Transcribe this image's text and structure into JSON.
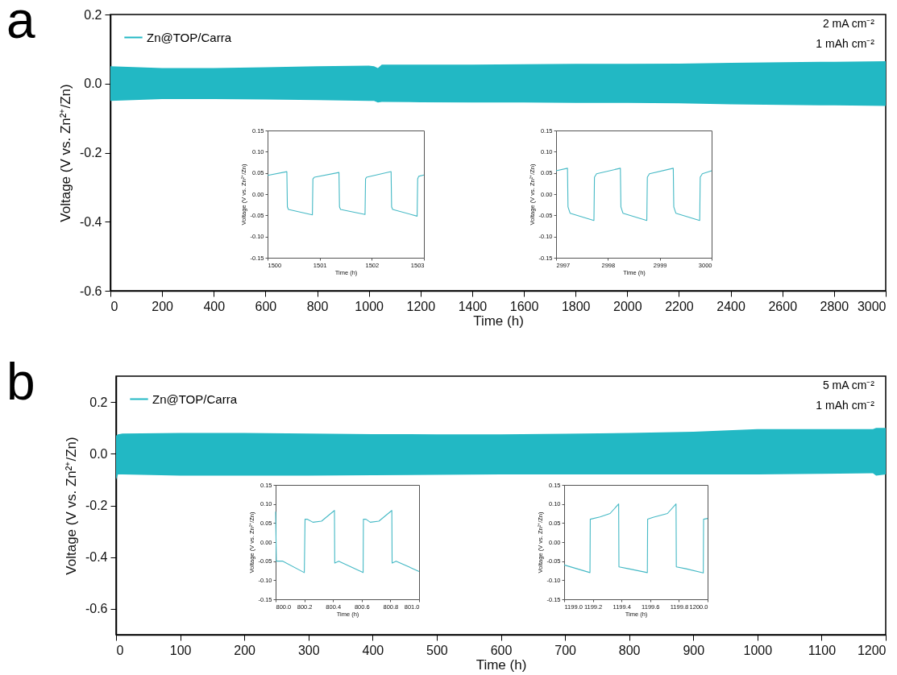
{
  "chart_data": [
    {
      "type": "line",
      "xlabel": "Time (h)",
      "ylabel": "Voltage (V vs. Zn²⁺/Zn)",
      "xlim": [
        0,
        3000
      ],
      "ylim": [
        -0.6,
        0.2
      ],
      "xticks": [
        0,
        200,
        400,
        600,
        800,
        1000,
        1200,
        1400,
        1600,
        1800,
        2000,
        2200,
        2400,
        2600,
        2800,
        3000
      ],
      "yticks": [
        {
          "value": -0.6,
          "label": "-0.6"
        },
        {
          "value": -0.4,
          "label": "-0.4"
        },
        {
          "value": -0.2,
          "label": "-0.2"
        },
        {
          "value": 0,
          "label": "0.0"
        },
        {
          "value": 0.2,
          "label": "0.2"
        }
      ],
      "grid": false,
      "legend": "top left",
      "annotations": [
        "a",
        "2 mA cm⁻²",
        "1 mAh cm⁻²"
      ],
      "series": [
        {
          "name": "Zn@TOP/Carra",
          "color": "#22b8c4",
          "x": [
            0,
            200,
            400,
            600,
            800,
            1000,
            1020,
            1035,
            1050,
            1200,
            1400,
            1600,
            1800,
            2000,
            2200,
            2400,
            2600,
            2800,
            3000
          ],
          "values": [
            null,
            null,
            null,
            null,
            null,
            null,
            null,
            null,
            null,
            null,
            null,
            null,
            null,
            null,
            null,
            null,
            null,
            null,
            null
          ],
          "upper": [
            0.05,
            0.045,
            0.045,
            0.047,
            0.05,
            0.052,
            0.05,
            0.045,
            0.055,
            0.055,
            0.055,
            0.056,
            0.057,
            0.057,
            0.058,
            0.06,
            0.062,
            0.063,
            0.065
          ],
          "lower": [
            -0.05,
            -0.045,
            -0.045,
            -0.046,
            -0.048,
            -0.05,
            -0.05,
            -0.055,
            -0.053,
            -0.054,
            -0.055,
            -0.055,
            -0.056,
            -0.056,
            -0.057,
            -0.06,
            -0.062,
            -0.063,
            -0.065
          ]
        }
      ]
    },
    {
      "type": "line",
      "xlabel": "Time (h)",
      "ylabel": "Voltage (V vs. Zn²⁺/Zn)",
      "xlim": [
        1500,
        1503
      ],
      "ylim": [
        -0.15,
        0.15
      ],
      "xticks": [
        1500,
        1501,
        1502,
        1503
      ],
      "yticks": [
        {
          "value": -0.15,
          "label": "-0.15"
        },
        {
          "value": -0.1,
          "label": "-0.10"
        },
        {
          "value": -0.05,
          "label": "-0.05"
        },
        {
          "value": 0,
          "label": "0.00"
        },
        {
          "value": 0.05,
          "label": "0.05"
        },
        {
          "value": 0.1,
          "label": "0.10"
        },
        {
          "value": 0.15,
          "label": "0.15"
        }
      ],
      "grid": false,
      "line_style": "solid",
      "series": [
        {
          "color": "#45b9c5",
          "x": [
            1500,
            1500.37,
            1500.38,
            1500.4,
            1500.86,
            1500.87,
            1500.9,
            1501.37,
            1501.38,
            1501.4,
            1501.87,
            1501.88,
            1501.9,
            1502.37,
            1502.38,
            1502.4,
            1502.87,
            1502.88,
            1502.9,
            1503
          ],
          "values": [
            0.044,
            0.053,
            -0.03,
            -0.036,
            -0.049,
            0.036,
            0.04,
            0.051,
            -0.03,
            -0.036,
            -0.048,
            0.036,
            0.04,
            0.053,
            -0.03,
            -0.036,
            -0.052,
            0.036,
            0.042,
            0.045
          ]
        }
      ]
    },
    {
      "type": "line",
      "xlabel": "Time (h)",
      "ylabel": "Voltage (V vs. Zn²⁺/Zn)",
      "xlim": [
        2997,
        3000
      ],
      "ylim": [
        -0.15,
        0.15
      ],
      "xticks": [
        2997,
        2998,
        2999,
        3000
      ],
      "yticks": [
        {
          "value": -0.15,
          "label": "-0.15"
        },
        {
          "value": -0.1,
          "label": "-0.10"
        },
        {
          "value": -0.05,
          "label": "-0.05"
        },
        {
          "value": 0,
          "label": "0.00"
        },
        {
          "value": 0.05,
          "label": "0.05"
        },
        {
          "value": 0.1,
          "label": "0.10"
        },
        {
          "value": 0.15,
          "label": "0.15"
        }
      ],
      "grid": false,
      "line_style": "solid",
      "series": [
        {
          "color": "#45b9c5",
          "x": [
            2997,
            2997.22,
            2997.23,
            2997.27,
            2997.73,
            2997.74,
            2997.78,
            2998.24,
            2998.25,
            2998.29,
            2998.75,
            2998.76,
            2998.8,
            2999.26,
            2999.27,
            2999.31,
            2999.77,
            2999.78,
            2999.82,
            3000
          ],
          "values": [
            0.055,
            0.061,
            -0.03,
            -0.045,
            -0.062,
            0.04,
            0.048,
            0.061,
            -0.03,
            -0.045,
            -0.062,
            0.04,
            0.048,
            0.061,
            -0.03,
            -0.045,
            -0.062,
            0.04,
            0.048,
            0.055
          ]
        }
      ]
    },
    {
      "type": "line",
      "xlabel": "Time (h)",
      "ylabel": "Voltage (V vs. Zn²⁺/Zn)",
      "xlim": [
        0,
        1200
      ],
      "ylim": [
        -0.7,
        0.3
      ],
      "xticks": [
        0,
        100,
        200,
        300,
        400,
        500,
        600,
        700,
        800,
        900,
        1000,
        1100,
        1200
      ],
      "yticks": [
        {
          "value": -0.6,
          "label": "-0.6"
        },
        {
          "value": -0.4,
          "label": "-0.4"
        },
        {
          "value": -0.2,
          "label": "-0.2"
        },
        {
          "value": 0,
          "label": "0.0"
        },
        {
          "value": 0.2,
          "label": "0.2"
        }
      ],
      "grid": false,
      "legend": "top left",
      "annotations": [
        "b",
        "5 mA cm⁻²",
        "1 mAh cm⁻²"
      ],
      "series": [
        {
          "name": "Zn@TOP/Carra",
          "color": "#22b8c4",
          "x": [
            0,
            3,
            10,
            100,
            200,
            300,
            400,
            500,
            600,
            700,
            800,
            900,
            1000,
            1100,
            1180,
            1185,
            1200
          ],
          "values": [
            null,
            null,
            null,
            null,
            null,
            null,
            null,
            null,
            null,
            null,
            null,
            null,
            null,
            null,
            null,
            null,
            null
          ],
          "upper": [
            0.07,
            0.075,
            0.078,
            0.08,
            0.08,
            0.078,
            0.076,
            0.075,
            0.075,
            0.077,
            0.08,
            0.085,
            0.095,
            0.095,
            0.095,
            0.1,
            0.1
          ],
          "lower": [
            -0.1,
            -0.08,
            -0.08,
            -0.085,
            -0.085,
            -0.085,
            -0.083,
            -0.082,
            -0.08,
            -0.08,
            -0.08,
            -0.08,
            -0.08,
            -0.078,
            -0.075,
            -0.085,
            -0.08
          ]
        }
      ]
    },
    {
      "type": "line",
      "xlabel": "Time (h)",
      "ylabel": "Voltage (V vs. Zn²⁺/Zn)",
      "xlim": [
        800,
        801
      ],
      "ylim": [
        -0.15,
        0.15
      ],
      "xticks": [
        {
          "value": 800,
          "label": "800.0"
        },
        800.2,
        800.4,
        800.6,
        800.8,
        {
          "value": 801,
          "label": "801.0"
        }
      ],
      "yticks": [
        {
          "value": -0.15,
          "label": "-0.15"
        },
        {
          "value": -0.1,
          "label": "-0.10"
        },
        {
          "value": -0.05,
          "label": "-0.05"
        },
        {
          "value": 0,
          "label": "0.00"
        },
        {
          "value": 0.05,
          "label": "0.05"
        },
        {
          "value": 0.1,
          "label": "0.10"
        },
        {
          "value": 0.15,
          "label": "0.15"
        }
      ],
      "grid": false,
      "line_style": "solid",
      "series": [
        {
          "color": "#45b9c5",
          "x": [
            800,
            800.005,
            800.05,
            800.2,
            800.205,
            800.22,
            800.26,
            800.32,
            800.41,
            800.412,
            800.44,
            800.61,
            800.612,
            800.63,
            800.66,
            800.72,
            800.81,
            800.812,
            800.84,
            801
          ],
          "values": [
            0.08,
            -0.05,
            -0.05,
            -0.08,
            0.06,
            0.06,
            0.052,
            0.055,
            0.083,
            -0.055,
            -0.05,
            -0.08,
            0.06,
            0.06,
            0.052,
            0.055,
            0.083,
            -0.055,
            -0.05,
            -0.077
          ]
        }
      ]
    },
    {
      "type": "line",
      "xlabel": "Time (h)",
      "ylabel": "Voltage (V vs. Zn²⁺/Zn)",
      "xlim": [
        1199,
        1200
      ],
      "ylim": [
        -0.15,
        0.15
      ],
      "xticks": [
        {
          "value": 1199,
          "label": "1199.0"
        },
        1199.2,
        1199.4,
        1199.6,
        1199.8,
        {
          "value": 1200,
          "label": "1200.0"
        }
      ],
      "yticks": [
        {
          "value": -0.15,
          "label": "-0.15"
        },
        {
          "value": -0.1,
          "label": "-0.10"
        },
        {
          "value": -0.05,
          "label": "-0.05"
        },
        {
          "value": 0,
          "label": "0.00"
        },
        {
          "value": 0.05,
          "label": "0.05"
        },
        {
          "value": 0.1,
          "label": "0.10"
        },
        {
          "value": 0.15,
          "label": "0.15"
        }
      ],
      "grid": false,
      "line_style": "solid",
      "series": [
        {
          "color": "#45b9c5",
          "x": [
            1199,
            1199.18,
            1199.182,
            1199.25,
            1199.32,
            1199.38,
            1199.382,
            1199.45,
            1199.58,
            1199.582,
            1199.62,
            1199.72,
            1199.78,
            1199.782,
            1199.85,
            1199.97,
            1199.972,
            1200
          ],
          "values": [
            -0.06,
            -0.08,
            0.06,
            0.066,
            0.075,
            0.1,
            -0.065,
            -0.07,
            -0.08,
            0.06,
            0.065,
            0.075,
            0.1,
            -0.065,
            -0.07,
            -0.081,
            0.06,
            0.062
          ]
        }
      ]
    }
  ]
}
